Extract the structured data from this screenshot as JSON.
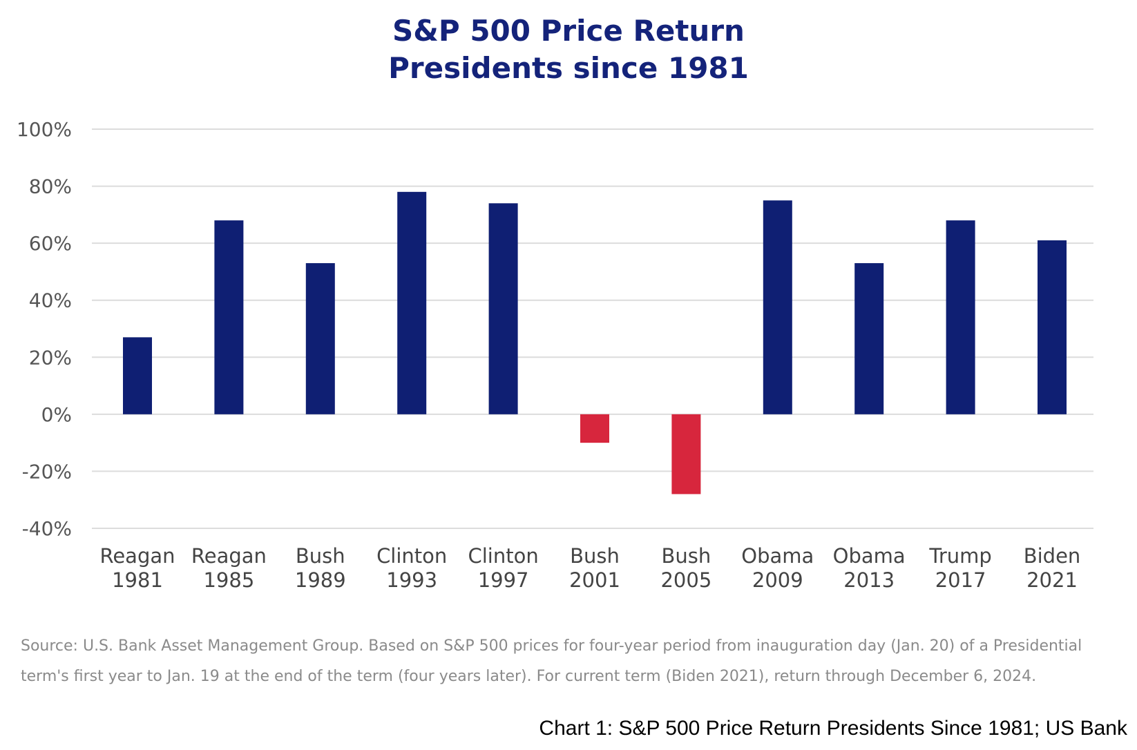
{
  "chart_data": {
    "type": "bar",
    "title_line1": "S&P 500 Price Return",
    "title_line2": "Presidents since 1981",
    "categories": [
      [
        "Reagan",
        "1981"
      ],
      [
        "Reagan",
        "1985"
      ],
      [
        "Bush",
        "1989"
      ],
      [
        "Clinton",
        "1993"
      ],
      [
        "Clinton",
        "1997"
      ],
      [
        "Bush",
        "2001"
      ],
      [
        "Bush",
        "2005"
      ],
      [
        "Obama",
        "2009"
      ],
      [
        "Obama",
        "2013"
      ],
      [
        "Trump",
        "2017"
      ],
      [
        "Biden",
        "2021"
      ]
    ],
    "values": [
      27,
      68,
      53,
      78,
      74,
      -10,
      -28,
      75,
      53,
      68,
      61
    ],
    "ylim": [
      -40,
      100
    ],
    "yticks": [
      -40,
      -20,
      0,
      20,
      40,
      60,
      80,
      100
    ],
    "ytick_labels": [
      "-40%",
      "-20%",
      "0%",
      "20%",
      "40%",
      "60%",
      "80%",
      "100%"
    ],
    "grid": true,
    "colors": {
      "positive": "#0f1f73",
      "negative": "#d7263d",
      "grid": "#dcdcdc",
      "title": "#14237a"
    }
  },
  "source_line1": "Source: U.S. Bank Asset Management Group. Based on S&P 500 prices for four-year period from inauguration day (Jan. 20) of a Presidential",
  "source_line2": "term's first year to Jan. 19 at the end of the term (four years later). For current term (Biden 2021), return through December 6, 2024.",
  "caption": "Chart 1: S&P 500 Price Return Presidents Since 1981; US Bank"
}
